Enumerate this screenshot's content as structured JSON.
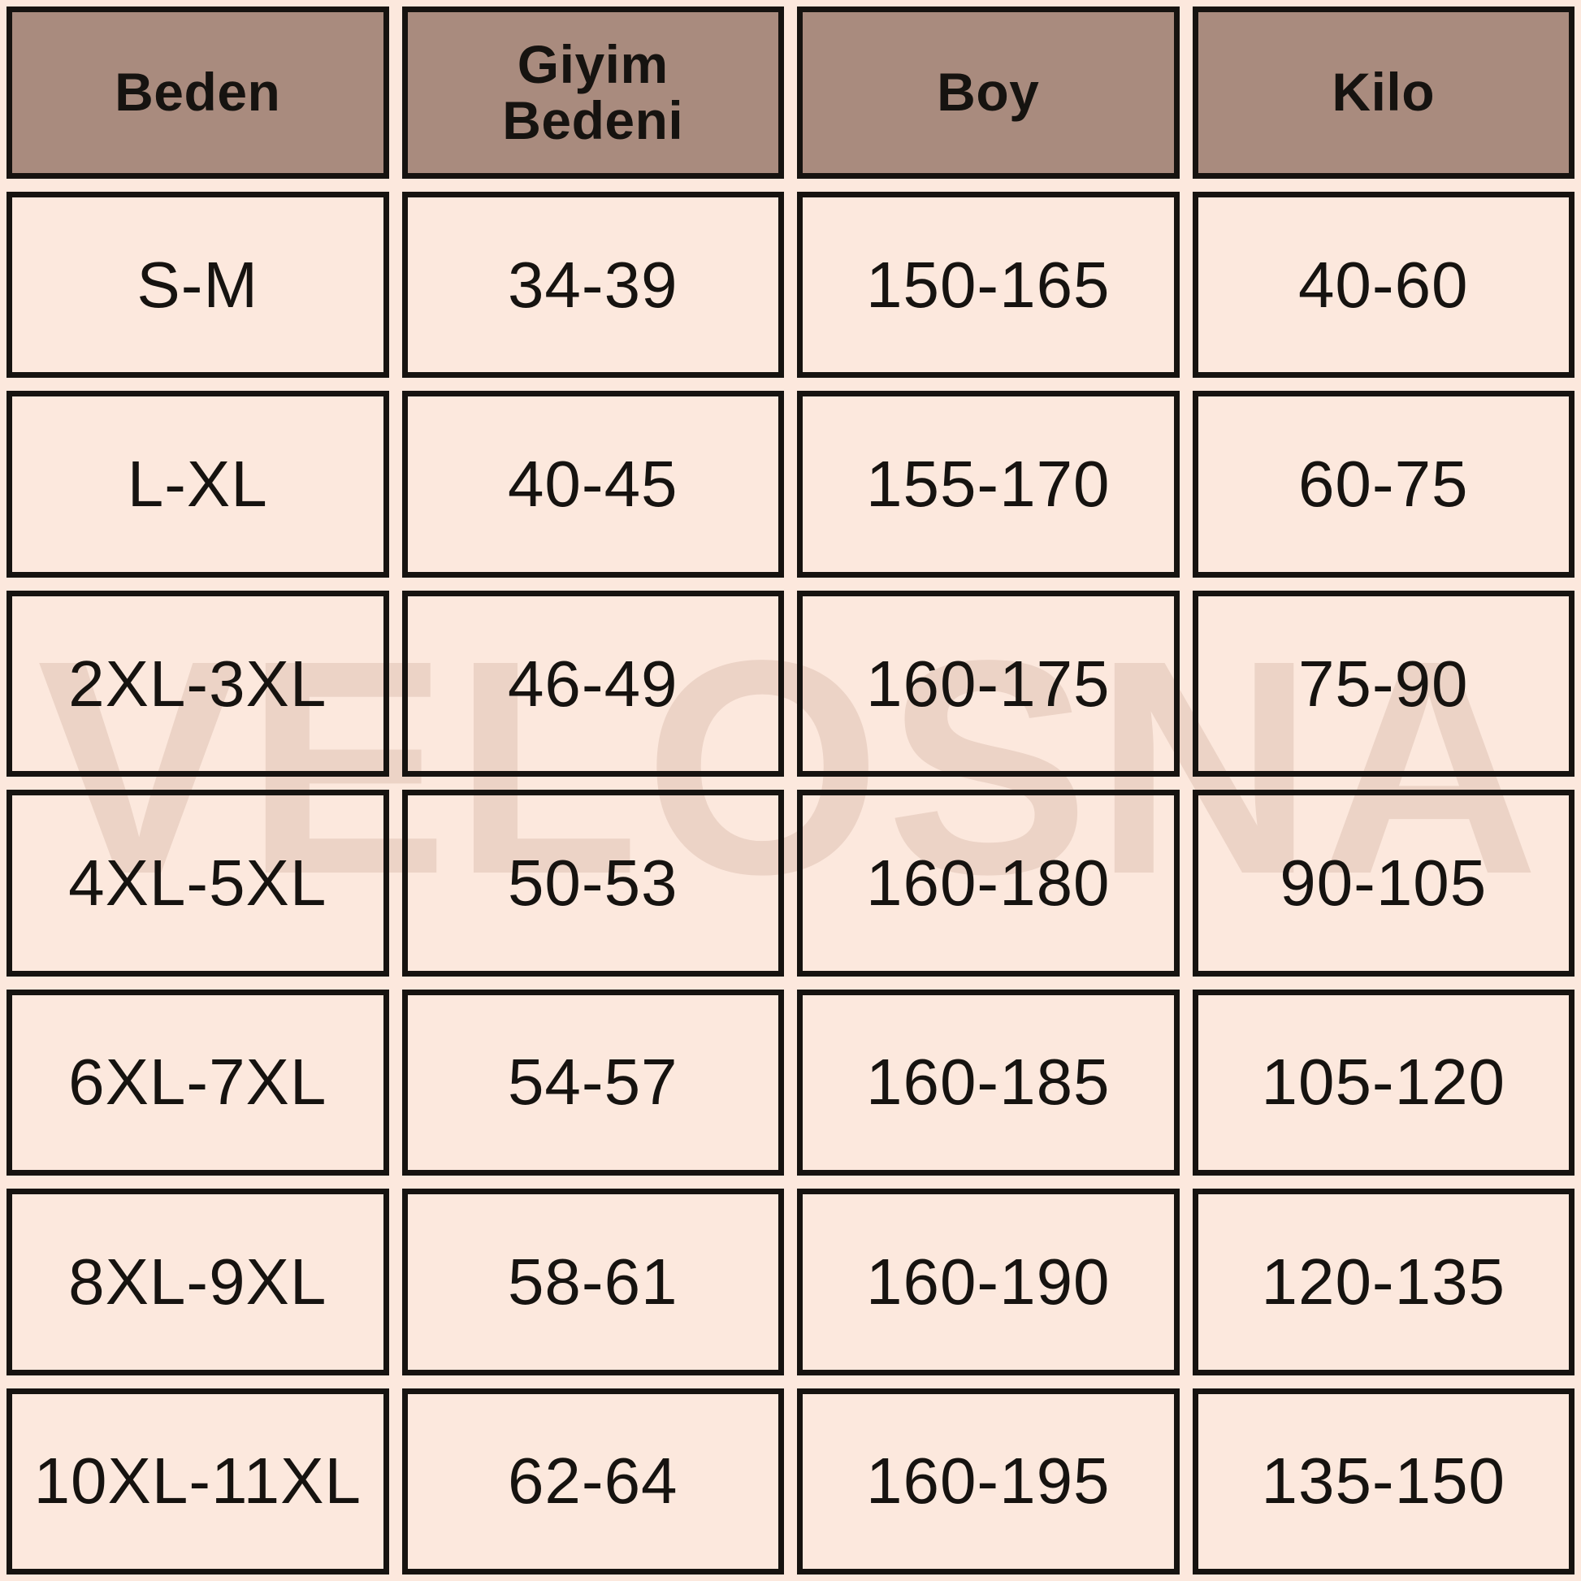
{
  "page": {
    "background_color": "#fce8dd",
    "border_color": "#161310",
    "header_background_color": "#a98b7e",
    "watermark_color": "#ecd3c6",
    "text_color": "#161310"
  },
  "watermark": {
    "text": "VELOSNA"
  },
  "table": {
    "headers": [
      "Beden",
      "Giyim Bedeni",
      "Boy",
      "Kilo"
    ],
    "rows": [
      [
        "S-M",
        "34-39",
        "150-165",
        "40-60"
      ],
      [
        "L-XL",
        "40-45",
        "155-170",
        "60-75"
      ],
      [
        "2XL-3XL",
        "46-49",
        "160-175",
        "75-90"
      ],
      [
        "4XL-5XL",
        "50-53",
        "160-180",
        "90-105"
      ],
      [
        "6XL-7XL",
        "54-57",
        "160-185",
        "105-120"
      ],
      [
        "8XL-9XL",
        "58-61",
        "160-190",
        "120-135"
      ],
      [
        "10XL-11XL",
        "62-64",
        "160-195",
        "135-150"
      ]
    ]
  },
  "chart_data": {
    "type": "table",
    "title": "",
    "columns": [
      "Beden",
      "Giyim Bedeni",
      "Boy",
      "Kilo"
    ],
    "rows": [
      {
        "beden": "S-M",
        "giyim_bedeni": "34-39",
        "boy": "150-165",
        "kilo": "40-60"
      },
      {
        "beden": "L-XL",
        "giyim_bedeni": "40-45",
        "boy": "155-170",
        "kilo": "60-75"
      },
      {
        "beden": "2XL-3XL",
        "giyim_bedeni": "46-49",
        "boy": "160-175",
        "kilo": "75-90"
      },
      {
        "beden": "4XL-5XL",
        "giyim_bedeni": "50-53",
        "boy": "160-180",
        "kilo": "90-105"
      },
      {
        "beden": "6XL-7XL",
        "giyim_bedeni": "54-57",
        "boy": "160-185",
        "kilo": "105-120"
      },
      {
        "beden": "8XL-9XL",
        "giyim_bedeni": "58-61",
        "boy": "160-190",
        "kilo": "120-135"
      },
      {
        "beden": "10XL-11XL",
        "giyim_bedeni": "62-64",
        "boy": "160-195",
        "kilo": "135-150"
      }
    ],
    "watermark": "VELOSNA",
    "layout": {
      "grid": "4 columns x 8 rows (1 header + 7 data)",
      "header_row": true
    }
  }
}
